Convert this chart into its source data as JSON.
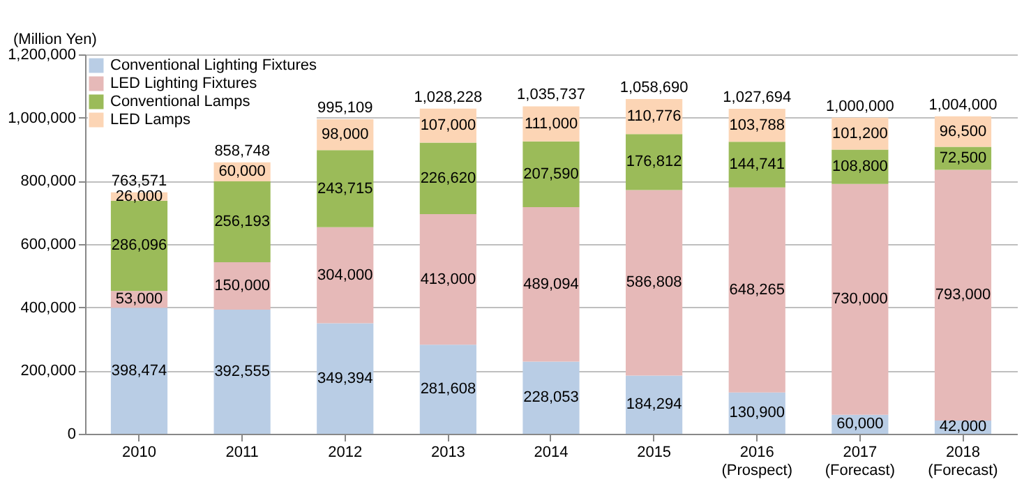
{
  "chart_data": {
    "type": "bar",
    "stacked": true,
    "ylabel": "(Million Yen)",
    "categories": [
      "2010",
      "2011",
      "2012",
      "2013",
      "2014",
      "2015",
      "2016\n(Prospect)",
      "2017\n(Forecast)",
      "2018\n(Forecast)"
    ],
    "series": [
      {
        "name": "Conventional Lighting Fixtures",
        "color": "#b9cde5",
        "values": [
          398474,
          392555,
          349394,
          281608,
          228053,
          184294,
          130900,
          60000,
          42000
        ],
        "value_labels": [
          "398,474",
          "392,555",
          "349,394",
          "281,608",
          "228,053",
          "184,294",
          "130,900",
          "60,000",
          "42,000"
        ]
      },
      {
        "name": "LED Lighting Fixtures",
        "color": "#e6b9b8",
        "values": [
          53000,
          150000,
          304000,
          413000,
          489094,
          586808,
          648265,
          730000,
          793000
        ],
        "value_labels": [
          "53,000",
          "150,000",
          "304,000",
          "413,000",
          "489,094",
          "586,808",
          "648,265",
          "730,000",
          "793,000"
        ]
      },
      {
        "name": "Conventional Lamps",
        "color": "#9bbb59",
        "values": [
          286096,
          256193,
          243715,
          226620,
          207590,
          176812,
          144741,
          108800,
          72500
        ],
        "value_labels": [
          "286,096",
          "256,193",
          "243,715",
          "226,620",
          "207,590",
          "176,812",
          "144,741",
          "108,800",
          "72,500"
        ]
      },
      {
        "name": "LED Lamps",
        "color": "#fcd5b5",
        "values": [
          26000,
          60000,
          98000,
          107000,
          111000,
          110776,
          103788,
          101200,
          96500
        ],
        "value_labels": [
          "26,000",
          "60,000",
          "98,000",
          "107,000",
          "111,000",
          "110,776",
          "103,788",
          "101,200",
          "96,500"
        ]
      }
    ],
    "totals": [
      "763,571",
      "858,748",
      "995,109",
      "1,028,228",
      "1,035,737",
      "1,058,690",
      "1,027,694",
      "1,000,000",
      "1,004,000"
    ],
    "ylim": [
      0,
      1200000
    ],
    "yticks": [
      0,
      {
        "value": 200000,
        "label": "200,000"
      },
      {
        "value": 400000,
        "label": "400,000"
      },
      {
        "value": 600000,
        "label": "600,000"
      },
      {
        "value": 800000,
        "label": "800,000"
      },
      {
        "value": 1000000,
        "label": "1,000,000"
      },
      {
        "value": 1200000,
        "label": "1,200,000"
      }
    ],
    "grid": "y",
    "legend": "top left"
  }
}
